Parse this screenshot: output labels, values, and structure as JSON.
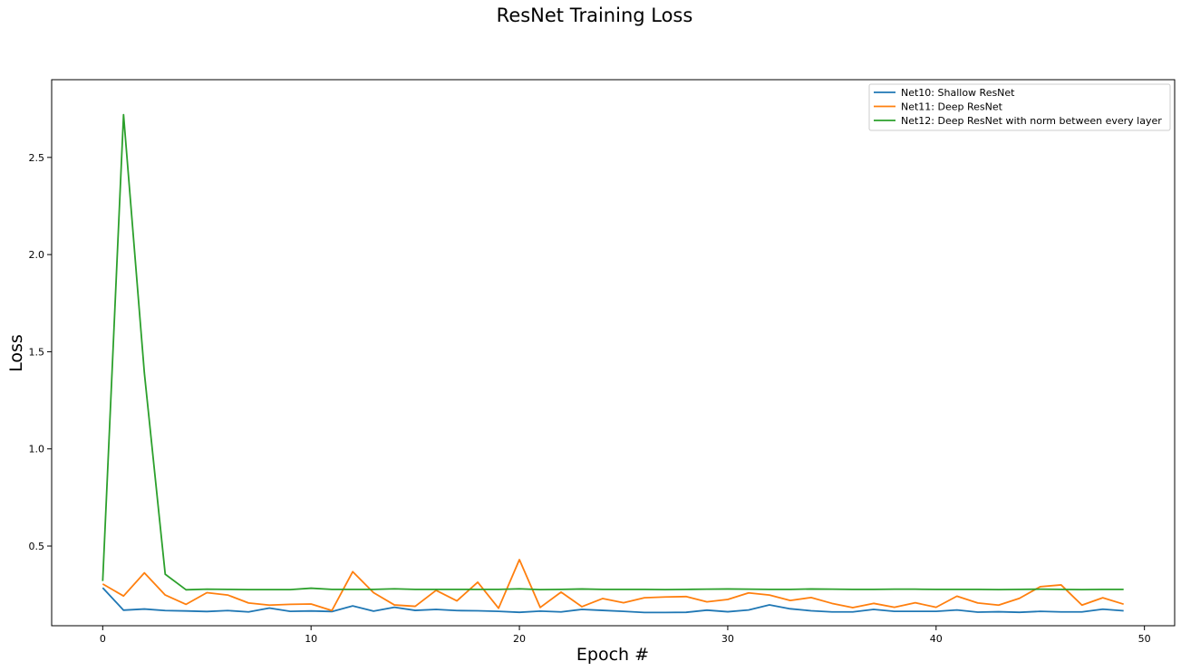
{
  "chart_data": {
    "type": "line",
    "title": "ResNet Training Loss",
    "xlabel": "Epoch #",
    "ylabel": "Loss",
    "xlim": [
      -2.45,
      51.45
    ],
    "ylim": [
      0.09,
      2.9
    ],
    "xticks": [
      0,
      10,
      20,
      30,
      40,
      50
    ],
    "yticks": [
      0.5,
      1.0,
      1.5,
      2.0,
      2.5
    ],
    "xtick_labels": [
      "0",
      "10",
      "20",
      "30",
      "40",
      "50"
    ],
    "ytick_labels": [
      "0.5",
      "1.0",
      "1.5",
      "2.0",
      "2.5"
    ],
    "grid": false,
    "legend_position": "top-right",
    "x": [
      0,
      1,
      2,
      3,
      4,
      5,
      6,
      7,
      8,
      9,
      10,
      11,
      12,
      13,
      14,
      15,
      16,
      17,
      18,
      19,
      20,
      21,
      22,
      23,
      24,
      25,
      26,
      27,
      28,
      29,
      30,
      31,
      32,
      33,
      34,
      35,
      36,
      37,
      38,
      39,
      40,
      41,
      42,
      43,
      44,
      45,
      46,
      47,
      48,
      49
    ],
    "series": [
      {
        "name": "Net10: Shallow ResNet",
        "color": "#1f77b4",
        "values": [
          0.285,
          0.17,
          0.176,
          0.168,
          0.166,
          0.163,
          0.168,
          0.161,
          0.181,
          0.164,
          0.166,
          0.163,
          0.192,
          0.165,
          0.185,
          0.169,
          0.174,
          0.168,
          0.167,
          0.164,
          0.159,
          0.165,
          0.161,
          0.174,
          0.169,
          0.164,
          0.158,
          0.158,
          0.159,
          0.17,
          0.162,
          0.171,
          0.197,
          0.177,
          0.167,
          0.161,
          0.161,
          0.174,
          0.164,
          0.164,
          0.164,
          0.171,
          0.16,
          0.162,
          0.159,
          0.164,
          0.161,
          0.161,
          0.175,
          0.167
        ]
      },
      {
        "name": "Net11: Deep ResNet",
        "color": "#ff7f0e",
        "values": [
          0.305,
          0.243,
          0.362,
          0.248,
          0.2,
          0.26,
          0.248,
          0.207,
          0.196,
          0.2,
          0.202,
          0.168,
          0.368,
          0.26,
          0.197,
          0.19,
          0.272,
          0.218,
          0.314,
          0.18,
          0.43,
          0.184,
          0.263,
          0.188,
          0.23,
          0.208,
          0.234,
          0.238,
          0.24,
          0.213,
          0.225,
          0.259,
          0.248,
          0.22,
          0.235,
          0.205,
          0.183,
          0.205,
          0.185,
          0.208,
          0.185,
          0.242,
          0.207,
          0.196,
          0.231,
          0.291,
          0.3,
          0.196,
          0.234,
          0.201
        ]
      },
      {
        "name": "Net12: Deep ResNet with norm between every layer",
        "color": "#2ca02c",
        "values": [
          0.32,
          2.72,
          1.39,
          0.355,
          0.275,
          0.278,
          0.277,
          0.276,
          0.276,
          0.276,
          0.283,
          0.277,
          0.277,
          0.277,
          0.28,
          0.277,
          0.277,
          0.277,
          0.277,
          0.277,
          0.28,
          0.276,
          0.277,
          0.279,
          0.277,
          0.277,
          0.277,
          0.276,
          0.277,
          0.278,
          0.279,
          0.278,
          0.277,
          0.277,
          0.279,
          0.278,
          0.277,
          0.277,
          0.278,
          0.278,
          0.277,
          0.277,
          0.277,
          0.276,
          0.277,
          0.278,
          0.277,
          0.276,
          0.277,
          0.277
        ]
      }
    ]
  }
}
